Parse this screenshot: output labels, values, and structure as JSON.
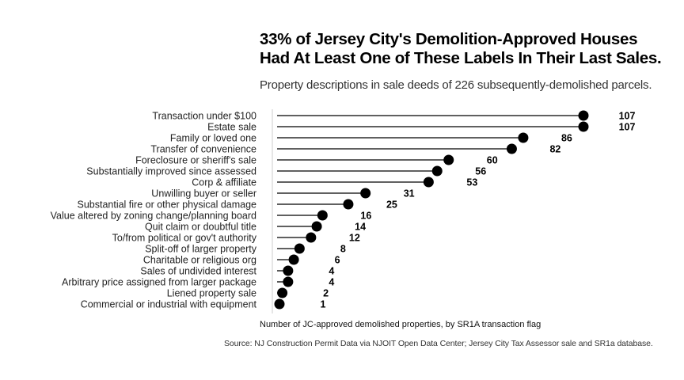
{
  "title_line1": "33% of Jersey City's Demolition-Approved Houses",
  "title_line2": "Had At Least One of These Labels In Their Last Sales.",
  "subtitle": "Property descriptions in sale deeds of 226 subsequently-demolished parcels.",
  "source": "Source: NJ Construction Permit Data via NJOIT Open Data Center; Jersey City Tax Assessor sale and SR1a database.",
  "colors": {
    "dot": "#000000",
    "line": "#000000",
    "axis": "#cccccc"
  },
  "chart_data": {
    "type": "lollipop",
    "xlabel": "Number of JC-approved demolished properties, by SR1A transaction flag",
    "ylabel": "",
    "xlim": [
      0,
      107
    ],
    "grid": false,
    "legend": "none",
    "categories": [
      "Transaction under $100",
      "Estate sale",
      "Family or loved one",
      "Transfer of convenience",
      "Foreclosure or sheriff's sale",
      "Substantially improved since assessed",
      "Corp & affiliate",
      "Unwilling buyer or seller",
      "Substantial fire or other physical damage",
      "Value altered by zoning change/planning board",
      "Quit claim or doubtful title",
      "To/from political or gov't authority",
      "Split-off of larger property",
      "Charitable or religious org",
      "Sales of undivided interest",
      "Arbitrary price assigned from larger package",
      "Liened property sale",
      "Commercial or industrial with equipment"
    ],
    "values": [
      107,
      107,
      86,
      82,
      60,
      56,
      53,
      31,
      25,
      16,
      14,
      12,
      8,
      6,
      4,
      4,
      2,
      1
    ]
  }
}
